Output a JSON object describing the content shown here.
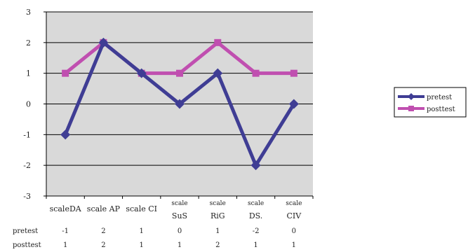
{
  "chart_data": {
    "type": "line",
    "title": "",
    "xlabel": "",
    "ylabel": "",
    "ylim": [
      -3,
      3
    ],
    "yticks": [
      -3,
      -2,
      -1,
      0,
      1,
      2,
      3
    ],
    "grid": "horizontal",
    "legend_position": "right",
    "categories": [
      [
        "scaleDA"
      ],
      [
        "scale AP"
      ],
      [
        "scale CI"
      ],
      [
        "scale",
        "SuS"
      ],
      [
        "scale",
        "RiG"
      ],
      [
        "scale",
        "DS."
      ],
      [
        "scale",
        "CIV"
      ]
    ],
    "series": [
      {
        "name": "pretest",
        "values": [
          -1,
          2,
          1,
          0,
          1,
          -2,
          0
        ],
        "color": "#3f3d94",
        "marker": "diamond"
      },
      {
        "name": "posttest",
        "values": [
          1,
          2,
          1,
          1,
          2,
          1,
          1
        ],
        "color": "#c04fb0",
        "marker": "square"
      }
    ],
    "colors": {
      "plot_background": "#d9d9d9",
      "gridline": "#000000"
    }
  }
}
